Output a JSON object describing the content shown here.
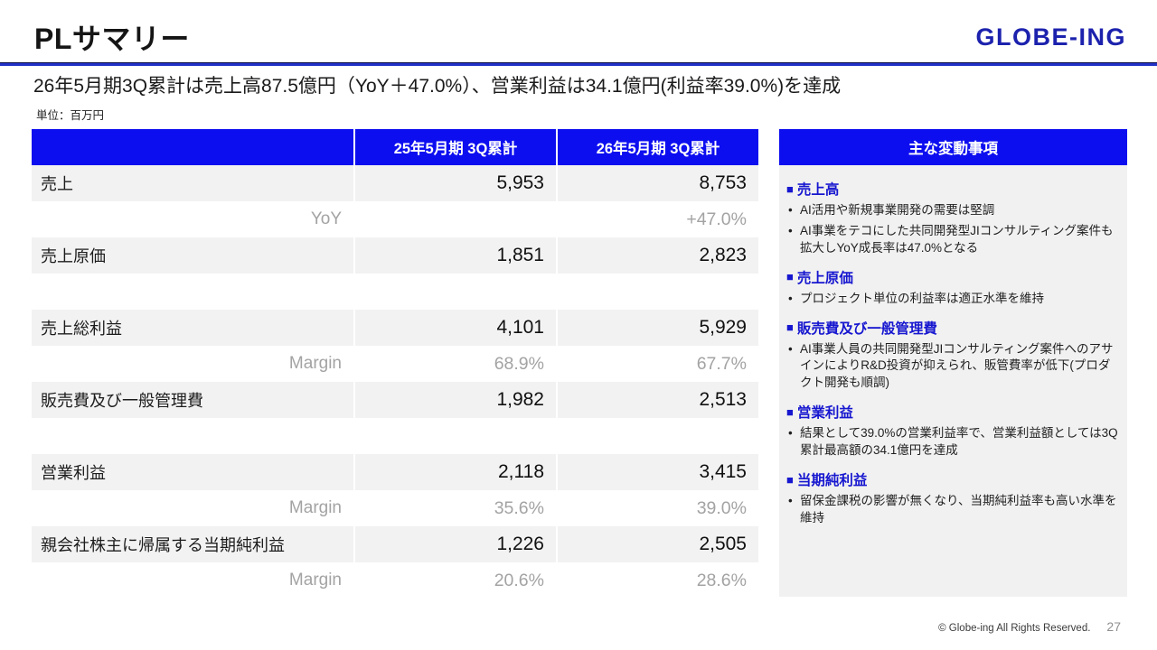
{
  "header": {
    "title": "PLサマリー",
    "logo": "GLOBE-ING",
    "subtitle": "26年5月期3Q累計は売上高87.5億円（YoY＋47.0%）、営業利益は34.1億円(利益率39.0%)を達成"
  },
  "colors": {
    "accent_blue": "#0d0ef0",
    "heading_blue": "#1717d0",
    "logo_blue": "#1c22ad",
    "rule_blue": "#2133c7",
    "row_gray": "#f2f2f2",
    "muted_gray": "#a3a3a3"
  },
  "table": {
    "unit_label": "単位：百万円",
    "columns": [
      "",
      "25年5月期 3Q累計",
      "26年5月期 3Q累計"
    ],
    "rows": [
      {
        "label": "売上",
        "v1": "5,953",
        "v2": "8,753"
      },
      {
        "label": "YoY",
        "v1": "",
        "v2": "+47.0%"
      },
      {
        "label": "売上原価",
        "v1": "1,851",
        "v2": "2,823"
      },
      {
        "label": "",
        "v1": "",
        "v2": ""
      },
      {
        "label": "売上総利益",
        "v1": "4,101",
        "v2": "5,929"
      },
      {
        "label": "Margin",
        "v1": "68.9%",
        "v2": "67.7%"
      },
      {
        "label": "販売費及び一般管理費",
        "v1": "1,982",
        "v2": "2,513"
      },
      {
        "label": "",
        "v1": "",
        "v2": ""
      },
      {
        "label": "営業利益",
        "v1": "2,118",
        "v2": "3,415"
      },
      {
        "label": "Margin",
        "v1": "35.6%",
        "v2": "39.0%"
      },
      {
        "label": "親会社株主に帰属する当期純利益",
        "v1": "1,226",
        "v2": "2,505"
      },
      {
        "label": "Margin",
        "v1": "20.6%",
        "v2": "28.6%"
      }
    ]
  },
  "notes": {
    "title": "主な変動事項",
    "section_marker": "■",
    "bullet_marker": "•",
    "sections": [
      {
        "heading": "売上高",
        "bullets": [
          "AI活用や新規事業開発の需要は堅調",
          "AI事業をテコにした共同開発型JIコンサルティング案件も拡大しYoY成長率は47.0%となる"
        ]
      },
      {
        "heading": "売上原価",
        "bullets": [
          "プロジェクト単位の利益率は適正水準を維持"
        ]
      },
      {
        "heading": "販売費及び一般管理費",
        "bullets": [
          "AI事業人員の共同開発型JIコンサルティング案件へのアサインによりR&D投資が抑えられ、販管費率が低下(プロダクト開発も順調)"
        ]
      },
      {
        "heading": "営業利益",
        "bullets": [
          "結果として39.0%の営業利益率で、営業利益額としては3Q累計最高額の34.1億円を達成"
        ]
      },
      {
        "heading": "当期純利益",
        "bullets": [
          "留保金課税の影響が無くなり、当期純利益率も高い水準を維持"
        ]
      }
    ]
  },
  "footer": {
    "copyright": "© Globe-ing All Rights Reserved.",
    "page_number": "27"
  }
}
